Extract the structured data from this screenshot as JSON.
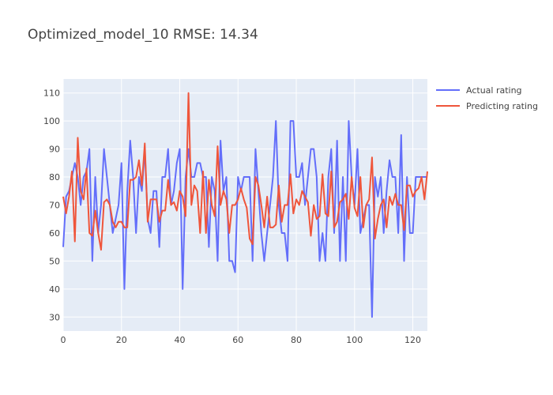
{
  "chart_data": {
    "type": "line",
    "title": "Optimized_model_10 RMSE: 14.34",
    "xlabel": "",
    "ylabel": "",
    "xlim": [
      0,
      125
    ],
    "ylim": [
      25,
      115
    ],
    "x_ticks": [
      0,
      20,
      40,
      60,
      80,
      100,
      120
    ],
    "y_ticks": [
      30,
      40,
      50,
      60,
      70,
      80,
      90,
      100,
      110
    ],
    "grid": true,
    "legend_position": "top-right",
    "background": "#E5ECF6",
    "series": [
      {
        "name": "Actual rating",
        "color": "#636EFA",
        "values": [
          55,
          73,
          75,
          80,
          85,
          80,
          70,
          80,
          82,
          90,
          50,
          80,
          60,
          70,
          90,
          80,
          70,
          60,
          65,
          70,
          85,
          40,
          75,
          93,
          80,
          60,
          80,
          75,
          90,
          65,
          60,
          75,
          75,
          55,
          80,
          80,
          90,
          70,
          75,
          85,
          90,
          40,
          80,
          90,
          80,
          80,
          85,
          85,
          80,
          80,
          55,
          80,
          75,
          50,
          93,
          75,
          80,
          50,
          50,
          46,
          80,
          75,
          80,
          80,
          80,
          50,
          90,
          75,
          60,
          50,
          60,
          70,
          80,
          100,
          70,
          60,
          60,
          50,
          100,
          100,
          80,
          80,
          85,
          70,
          80,
          90,
          90,
          80,
          50,
          60,
          50,
          80,
          90,
          60,
          93,
          50,
          80,
          50,
          100,
          80,
          70,
          90,
          60,
          65,
          70,
          70,
          30,
          80,
          73,
          80,
          60,
          75,
          86,
          80,
          80,
          60,
          95,
          50,
          80,
          60,
          60,
          80,
          80,
          80,
          80,
          80
        ]
      },
      {
        "name": "Predicting rating",
        "color": "#EF553B",
        "values": [
          73,
          67,
          73,
          82,
          57,
          94,
          75,
          72,
          83,
          60,
          59,
          68,
          60,
          54,
          71,
          72,
          70,
          64,
          62,
          64,
          64,
          62,
          62,
          79,
          79,
          80,
          86,
          77,
          92,
          64,
          72,
          72,
          72,
          64,
          68,
          68,
          79,
          70,
          71,
          68,
          75,
          73,
          66,
          110,
          70,
          77,
          75,
          60,
          82,
          60,
          79,
          70,
          66,
          91,
          70,
          75,
          72,
          60,
          70,
          70,
          72,
          76,
          72,
          69,
          58,
          56,
          80,
          77,
          70,
          62,
          73,
          62,
          62,
          63,
          77,
          64,
          70,
          70,
          81,
          67,
          72,
          70,
          75,
          73,
          71,
          59,
          70,
          65,
          66,
          81,
          67,
          66,
          82,
          62,
          64,
          71,
          72,
          74,
          65,
          80,
          69,
          66,
          80,
          62,
          70,
          72,
          87,
          58,
          65,
          70,
          72,
          62,
          73,
          70,
          74,
          70,
          70,
          61,
          77,
          77,
          73,
          75,
          76,
          80,
          72,
          82
        ]
      }
    ]
  }
}
